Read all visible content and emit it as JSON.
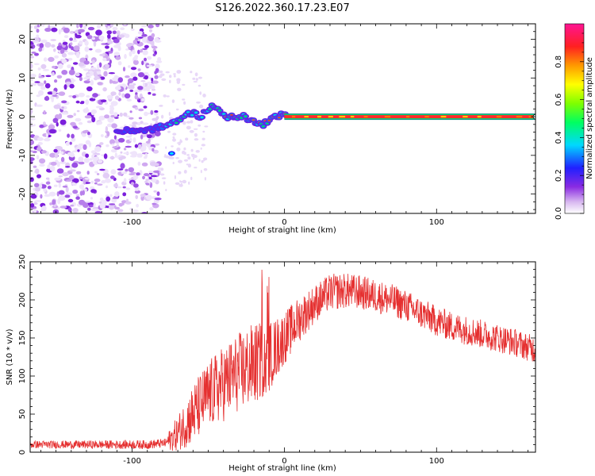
{
  "figure": {
    "title": "S126.2022.360.17.23.E07"
  },
  "chart_data": [
    {
      "type": "heatmap",
      "title": "S126.2022.360.17.23.E07",
      "xlabel": "Height of straight line (km)",
      "ylabel": "Frequency (Hz)",
      "xlim": [
        -167,
        165
      ],
      "ylim": [
        -25,
        24
      ],
      "xticks": [
        -100,
        0,
        100
      ],
      "yticks": [
        -20,
        -10,
        0,
        10,
        20
      ],
      "colorbar": {
        "label": "Normalized spectral amplitude",
        "range": [
          0.0,
          1.0
        ],
        "ticks": [
          0.0,
          0.2,
          0.4,
          0.6,
          0.8
        ],
        "tick_labels": [
          "0.0",
          "0.2",
          "0.4",
          "0.6",
          "0.8"
        ]
      },
      "ridge": {
        "x": [
          -110,
          -100,
          -90,
          -84,
          -80,
          -75,
          -70,
          -65,
          -60,
          -55,
          -50,
          -46,
          -42,
          -38,
          -34,
          -30,
          -26,
          -22,
          -18,
          -14,
          -10,
          -6,
          -2,
          2,
          10,
          50,
          100,
          163
        ],
        "y": [
          -4,
          -3.5,
          -3.5,
          -3,
          -2.5,
          -2,
          -1,
          0.5,
          1,
          0,
          2,
          3,
          1,
          0,
          0,
          0,
          0,
          -1,
          -1.5,
          -2,
          -1,
          0,
          0.5,
          0,
          0,
          0,
          0,
          0
        ]
      },
      "noise_region_xlim": [
        -167,
        -82
      ]
    },
    {
      "type": "line",
      "xlabel": "Height of straight line (km)",
      "ylabel": "SNR (10 * v/v)",
      "xlim": [
        -167,
        165
      ],
      "ylim": [
        0,
        250
      ],
      "xticks": [
        -100,
        0,
        100
      ],
      "yticks": [
        0,
        50,
        100,
        150,
        200,
        250
      ],
      "color": "#e53030",
      "trend": {
        "x": [
          -167,
          -140,
          -110,
          -90,
          -78,
          -70,
          -60,
          -50,
          -40,
          -30,
          -20,
          -10,
          0,
          10,
          20,
          30,
          40,
          50,
          60,
          70,
          80,
          90,
          100,
          110,
          120,
          130,
          140,
          150,
          160,
          165
        ],
        "y": [
          10,
          10,
          10,
          10,
          12,
          25,
          50,
          75,
          90,
          105,
          115,
          125,
          150,
          175,
          195,
          210,
          212,
          210,
          205,
          200,
          192,
          182,
          172,
          165,
          160,
          155,
          150,
          145,
          138,
          135
        ]
      },
      "noise_amplitude": {
        "x": [
          -167,
          -78,
          -75,
          -60,
          -40,
          -20,
          0,
          20,
          60,
          100,
          165
        ],
        "y": [
          5,
          6,
          15,
          40,
          50,
          55,
          35,
          25,
          22,
          20,
          18
        ]
      }
    }
  ]
}
